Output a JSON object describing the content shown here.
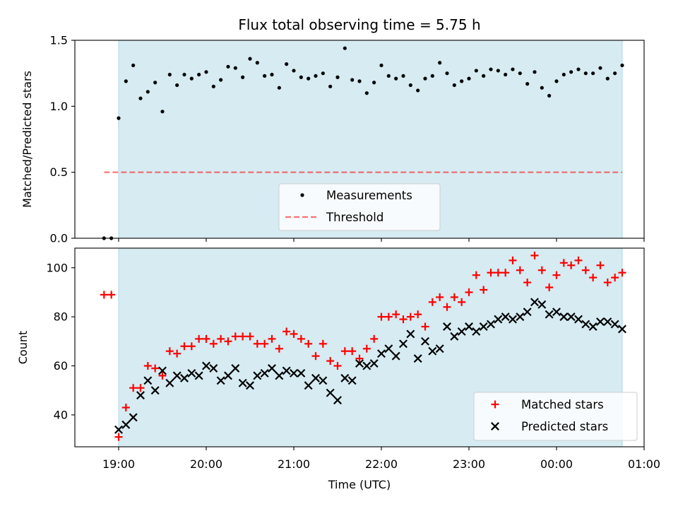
{
  "chart_data": [
    {
      "type": "scatter",
      "title": "Flux total observing time = 5.75 h",
      "xlabel": "",
      "ylabel": "Matched/Predicted stars",
      "ylim": [
        0,
        1.5
      ],
      "yticks": [
        "0.0",
        "0.5",
        "1.0",
        "1.5"
      ],
      "observing_window": {
        "start": "19:00",
        "end": "00:45"
      },
      "threshold": 0.5,
      "legend": [
        "Measurements",
        "Threshold"
      ],
      "legend_location": "lower-center",
      "series": [
        {
          "name": "Measurements",
          "color": "#000000",
          "marker": "dot",
          "x": [
            "18:50",
            "18:55",
            "19:00",
            "19:05",
            "19:10",
            "19:15",
            "19:20",
            "19:25",
            "19:30",
            "19:35",
            "19:40",
            "19:45",
            "19:50",
            "19:55",
            "20:00",
            "20:05",
            "20:10",
            "20:15",
            "20:20",
            "20:25",
            "20:30",
            "20:35",
            "20:40",
            "20:45",
            "20:50",
            "20:55",
            "21:00",
            "21:05",
            "21:10",
            "21:15",
            "21:20",
            "21:25",
            "21:30",
            "21:35",
            "21:40",
            "21:45",
            "21:50",
            "21:55",
            "22:00",
            "22:05",
            "22:10",
            "22:15",
            "22:20",
            "22:25",
            "22:30",
            "22:35",
            "22:40",
            "22:45",
            "22:50",
            "22:55",
            "23:00",
            "23:05",
            "23:10",
            "23:15",
            "23:20",
            "23:25",
            "23:30",
            "23:35",
            "23:40",
            "23:45",
            "23:50",
            "23:55",
            "00:00",
            "00:05",
            "00:10",
            "00:15",
            "00:20",
            "00:25",
            "00:30",
            "00:35",
            "00:40",
            "00:45"
          ],
          "y": [
            0.0,
            0.0,
            0.91,
            1.19,
            1.31,
            1.06,
            1.11,
            1.18,
            0.96,
            1.24,
            1.16,
            1.24,
            1.21,
            1.24,
            1.26,
            1.15,
            1.2,
            1.3,
            1.29,
            1.22,
            1.36,
            1.33,
            1.23,
            1.24,
            1.14,
            1.32,
            1.27,
            1.22,
            1.21,
            1.23,
            1.25,
            1.15,
            1.22,
            1.44,
            1.2,
            1.19,
            1.1,
            1.18,
            1.31,
            1.23,
            1.21,
            1.23,
            1.16,
            1.12,
            1.21,
            1.23,
            1.33,
            1.25,
            1.16,
            1.19,
            1.21,
            1.27,
            1.23,
            1.28,
            1.27,
            1.24,
            1.28,
            1.25,
            1.17,
            1.26,
            1.14,
            1.08,
            1.19,
            1.24,
            1.26,
            1.28,
            1.25,
            1.25,
            1.29,
            1.21,
            1.25,
            1.31
          ]
        }
      ]
    },
    {
      "type": "scatter",
      "title": "",
      "xlabel": "Time (UTC)",
      "ylabel": "Count",
      "xlim": [
        "18:30",
        "01:00"
      ],
      "xticks": [
        "19:00",
        "20:00",
        "21:00",
        "22:00",
        "23:00",
        "00:00",
        "01:00"
      ],
      "ylim": [
        27,
        108
      ],
      "yticks": [
        "40",
        "60",
        "80",
        "100"
      ],
      "observing_window": {
        "start": "19:00",
        "end": "00:45"
      },
      "legend": [
        "Matched stars",
        "Predicted stars"
      ],
      "legend_location": "lower-right",
      "series": [
        {
          "name": "Matched stars",
          "color": "#ff0000",
          "marker": "plus",
          "x": [
            "18:50",
            "18:55",
            "19:00",
            "19:05",
            "19:10",
            "19:15",
            "19:20",
            "19:25",
            "19:30",
            "19:35",
            "19:40",
            "19:45",
            "19:50",
            "19:55",
            "20:00",
            "20:05",
            "20:10",
            "20:15",
            "20:20",
            "20:25",
            "20:30",
            "20:35",
            "20:40",
            "20:45",
            "20:50",
            "20:55",
            "21:00",
            "21:05",
            "21:10",
            "21:15",
            "21:20",
            "21:25",
            "21:30",
            "21:35",
            "21:40",
            "21:45",
            "21:50",
            "21:55",
            "22:00",
            "22:05",
            "22:10",
            "22:15",
            "22:20",
            "22:25",
            "22:30",
            "22:35",
            "22:40",
            "22:45",
            "22:50",
            "22:55",
            "23:00",
            "23:05",
            "23:10",
            "23:15",
            "23:20",
            "23:25",
            "23:30",
            "23:35",
            "23:40",
            "23:45",
            "23:50",
            "23:55",
            "00:00",
            "00:05",
            "00:10",
            "00:15",
            "00:20",
            "00:25",
            "00:30",
            "00:35",
            "00:40",
            "00:45"
          ],
          "y": [
            89,
            89,
            31,
            43,
            51,
            51,
            60,
            59,
            56,
            66,
            65,
            68,
            68,
            71,
            71,
            69,
            71,
            70,
            72,
            72,
            72,
            69,
            69,
            71,
            67,
            74,
            73,
            71,
            69,
            64,
            69,
            62,
            60,
            66,
            66,
            63,
            67,
            71,
            80,
            80,
            81,
            79,
            80,
            81,
            76,
            86,
            88,
            84,
            88,
            86,
            90,
            97,
            91,
            98,
            98,
            98,
            103,
            99,
            94,
            105,
            99,
            92,
            97,
            102,
            101,
            103,
            99,
            96,
            101,
            94,
            96,
            98
          ]
        },
        {
          "name": "Predicted stars",
          "color": "#000000",
          "marker": "x",
          "x": [
            "19:00",
            "19:05",
            "19:10",
            "19:15",
            "19:20",
            "19:25",
            "19:30",
            "19:35",
            "19:40",
            "19:45",
            "19:50",
            "19:55",
            "20:00",
            "20:05",
            "20:10",
            "20:15",
            "20:20",
            "20:25",
            "20:30",
            "20:35",
            "20:40",
            "20:45",
            "20:50",
            "20:55",
            "21:00",
            "21:05",
            "21:10",
            "21:15",
            "21:20",
            "21:25",
            "21:30",
            "21:35",
            "21:40",
            "21:45",
            "21:50",
            "21:55",
            "22:00",
            "22:05",
            "22:10",
            "22:15",
            "22:20",
            "22:25",
            "22:30",
            "22:35",
            "22:40",
            "22:45",
            "22:50",
            "22:55",
            "23:00",
            "23:05",
            "23:10",
            "23:15",
            "23:20",
            "23:25",
            "23:30",
            "23:35",
            "23:40",
            "23:45",
            "23:50",
            "23:55",
            "00:00",
            "00:05",
            "00:10",
            "00:15",
            "00:20",
            "00:25",
            "00:30",
            "00:35",
            "00:40",
            "00:45"
          ],
          "y": [
            34,
            36,
            39,
            48,
            54,
            50,
            58,
            53,
            56,
            55,
            57,
            56,
            60,
            59,
            54,
            56,
            59,
            53,
            52,
            56,
            57,
            59,
            56,
            58,
            57,
            57,
            52,
            55,
            54,
            49,
            46,
            55,
            54,
            61,
            60,
            61,
            65,
            67,
            64,
            69,
            73,
            63,
            70,
            66,
            67,
            76,
            72,
            74,
            76,
            74,
            76,
            77,
            79,
            80,
            79,
            80,
            82,
            86,
            85,
            81,
            82,
            80,
            80,
            79,
            77,
            76,
            78,
            78,
            77,
            75
          ]
        }
      ]
    }
  ]
}
